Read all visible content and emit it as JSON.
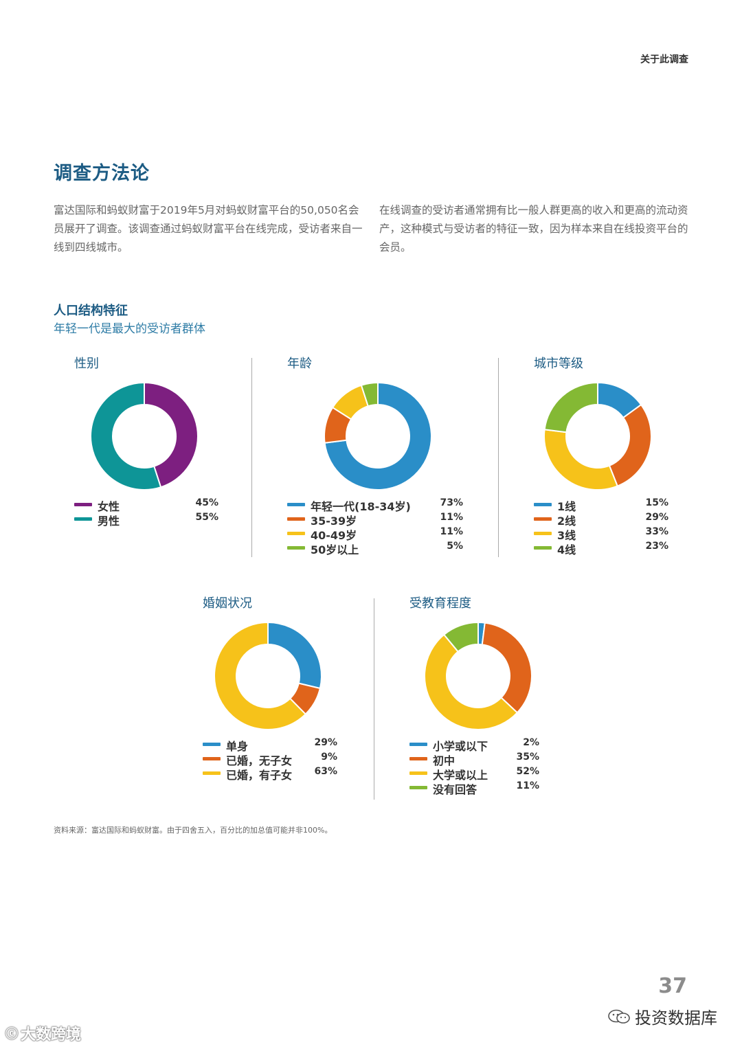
{
  "header": {
    "section_label": "关于此调查"
  },
  "section": {
    "title": "调查方法论",
    "paragraph_left": "富达国际和蚂蚁财富于2019年5月对蚂蚁财富平台的50,050名会员展开了调查。该调查通过蚂蚁财富平台在线完成，受访者来自一线到四线城市。",
    "paragraph_right": "在线调查的受访者通常拥有比一般人群更高的收入和更高的流动资产，这种模式与受访者的特征一致，因为样本来自在线投资平台的会员。"
  },
  "demographics": {
    "title": "人口结构特征",
    "subtitle": "年轻一代是最大的受访者群体"
  },
  "chart_data": [
    {
      "type": "donut",
      "title": "性别",
      "labels": [
        "女性",
        "男性"
      ],
      "values": [
        45,
        55
      ],
      "display": [
        "45%",
        "55%"
      ],
      "colors": [
        "#7d1f80",
        "#0e9597"
      ]
    },
    {
      "type": "donut",
      "title": "年龄",
      "labels": [
        "年轻一代(18-34岁)",
        "35-39岁",
        "40-49岁",
        "50岁以上"
      ],
      "values": [
        73,
        11,
        11,
        5
      ],
      "display": [
        "73%",
        "11%",
        "11%",
        "5%"
      ],
      "colors": [
        "#2a8ec8",
        "#e0641b",
        "#f6c21a",
        "#84b934"
      ]
    },
    {
      "type": "donut",
      "title": "城市等级",
      "labels": [
        "1线",
        "2线",
        "3线",
        "4线"
      ],
      "values": [
        15,
        29,
        33,
        23
      ],
      "display": [
        "15%",
        "29%",
        "33%",
        "23%"
      ],
      "colors": [
        "#2a8ec8",
        "#e0641b",
        "#f6c21a",
        "#84b934"
      ]
    },
    {
      "type": "donut",
      "title": "婚姻状况",
      "labels": [
        "单身",
        "已婚，无子女",
        "已婚，有子女"
      ],
      "values": [
        29,
        9,
        63
      ],
      "display": [
        "29%",
        "9%",
        "63%"
      ],
      "colors": [
        "#2a8ec8",
        "#e0641b",
        "#f6c21a"
      ]
    },
    {
      "type": "donut",
      "title": "受教育程度",
      "labels": [
        "小学或以下",
        "初中",
        "大学或以上",
        "没有回答"
      ],
      "values": [
        2,
        35,
        52,
        11
      ],
      "display": [
        "2%",
        "35%",
        "52%",
        "11%"
      ],
      "colors": [
        "#2a8ec8",
        "#e0641b",
        "#f6c21a",
        "#84b934"
      ]
    }
  ],
  "footer": {
    "source_note": "资料来源：富达国际和蚂蚁财富。由于四舍五入，百分比的加总值可能并非100%。",
    "page_number": "37",
    "wechat_brand": "投资数据库",
    "watermark_brand": "大数跨境"
  }
}
